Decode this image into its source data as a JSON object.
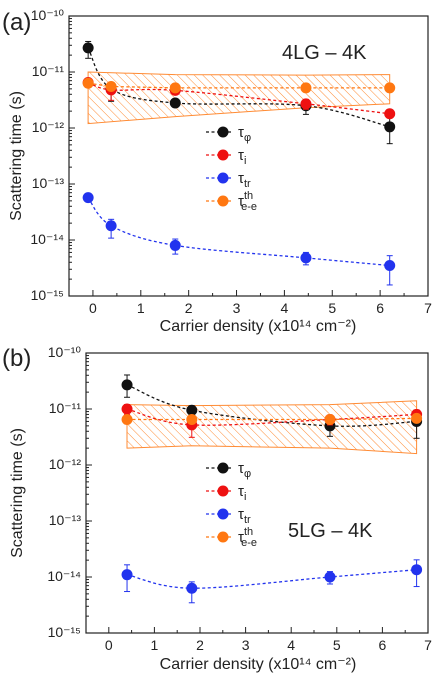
{
  "chart_data": [
    {
      "type": "scatter",
      "panel_label": "(a)",
      "inset_label": "4LG – 4K",
      "xlabel": "Carrier density (x10¹⁴ cm⁻²)",
      "ylabel": "Scattering time (s)",
      "xlim": [
        -0.5,
        7
      ],
      "ylim": [
        1e-15,
        1e-10
      ],
      "y_scale": "log",
      "x_ticks": [
        "0",
        "1",
        "2",
        "3",
        "4",
        "5",
        "6",
        "7"
      ],
      "y_ticks": [
        "10⁻¹⁵",
        "10⁻¹⁴",
        "10⁻¹³",
        "10⁻¹²",
        "10⁻¹¹",
        "10⁻¹⁰"
      ],
      "legend_position": "center",
      "series": [
        {
          "name": "τφ",
          "sym": "τ",
          "sub": "φ",
          "sup": "",
          "color": "#111111",
          "x": [
            -0.1,
            0.38,
            1.72,
            4.45,
            6.2
          ],
          "y": [
            2.7e-11,
            5e-12,
            2.8e-12,
            2.5e-12,
            1.05e-12
          ],
          "err": [
            [
              0.65,
              1.3
            ],
            [
              0.6,
              1.3
            ],
            [
              1,
              1
            ],
            [
              0.7,
              1.2
            ],
            [
              0.5,
              1.5
            ]
          ]
        },
        {
          "name": "τi",
          "sym": "τ",
          "sub": "i",
          "sup": "",
          "color": "#ee1111",
          "x": [
            -0.1,
            0.38,
            1.72,
            4.45,
            6.2
          ],
          "y": [
            6.5e-12,
            4.8e-12,
            4.7e-12,
            2.7e-12,
            1.8e-12
          ],
          "err": [
            [
              0.85,
              1.15
            ],
            [
              0.65,
              1.2
            ],
            [
              0.9,
              1.1
            ],
            [
              0.8,
              1.2
            ],
            [
              0.85,
              1.15
            ]
          ]
        },
        {
          "name": "τtr",
          "sym": "τ",
          "sub": "tr",
          "sup": "",
          "color": "#2233ee",
          "x": [
            -0.1,
            0.38,
            1.72,
            4.45,
            6.2
          ],
          "y": [
            5.7e-14,
            1.8e-14,
            8e-15,
            4.8e-15,
            3.5e-15
          ],
          "err": [
            [
              0.9,
              1.1
            ],
            [
              0.6,
              1.3
            ],
            [
              0.7,
              1.3
            ],
            [
              0.75,
              1.25
            ],
            [
              0.45,
              1.5
            ]
          ]
        },
        {
          "name": "τth e-e",
          "sym": "τ",
          "sub": "e-e",
          "sup": "th",
          "color": "#ff7711",
          "x": [
            -0.1,
            0.38,
            1.72,
            4.45,
            6.2
          ],
          "y": [
            6.3e-12,
            5.5e-12,
            5.2e-12,
            5.2e-12,
            5.2e-12
          ],
          "err": null
        }
      ],
      "band": {
        "color": "#ff7711",
        "x": [
          -0.1,
          1.72,
          4.45,
          6.2
        ],
        "upper": [
          1e-11,
          9e-12,
          8.8e-12,
          9e-12
        ],
        "lower": [
          1.2e-12,
          1.6e-12,
          2.3e-12,
          2.7e-12
        ]
      }
    },
    {
      "type": "scatter",
      "panel_label": "(b)",
      "inset_label": "5LG – 4K",
      "xlabel": "Carrier density (x10¹⁴ cm⁻²)",
      "ylabel": "Scattering time (s)",
      "xlim": [
        -0.5,
        7
      ],
      "ylim": [
        1e-15,
        1e-10
      ],
      "y_scale": "log",
      "x_ticks": [
        "0",
        "1",
        "2",
        "3",
        "4",
        "5",
        "6",
        "7"
      ],
      "y_ticks": [
        "10⁻¹⁵",
        "10⁻¹⁴",
        "10⁻¹³",
        "10⁻¹²",
        "10⁻¹¹",
        "10⁻¹⁰"
      ],
      "legend_position": "center",
      "series": [
        {
          "name": "τφ",
          "sym": "τ",
          "sub": "φ",
          "sup": "",
          "color": "#111111",
          "x": [
            0.4,
            1.82,
            4.85,
            6.75
          ],
          "y": [
            2.7e-11,
            9.5e-12,
            5e-12,
            6e-12
          ],
          "err": [
            [
              0.6,
              1.5
            ],
            [
              0.7,
              1.2
            ],
            [
              0.65,
              1.25
            ],
            [
              0.5,
              1.4
            ]
          ]
        },
        {
          "name": "τi",
          "sym": "τ",
          "sub": "i",
          "sup": "",
          "color": "#ee1111",
          "x": [
            0.4,
            1.82,
            4.85,
            6.75
          ],
          "y": [
            1e-11,
            5.2e-12,
            6.5e-12,
            8e-12
          ],
          "err": [
            [
              0.8,
              1.2
            ],
            [
              0.6,
              1.2
            ],
            [
              0.8,
              1.2
            ],
            [
              0.8,
              1.2
            ]
          ]
        },
        {
          "name": "τtr",
          "sym": "τ",
          "sub": "tr",
          "sup": "",
          "color": "#2233ee",
          "x": [
            0.4,
            1.82,
            4.85,
            6.75
          ],
          "y": [
            1.1e-14,
            6.3e-15,
            1e-14,
            1.35e-14
          ],
          "err": [
            [
              0.5,
              1.5
            ],
            [
              0.55,
              1.3
            ],
            [
              0.75,
              1.25
            ],
            [
              0.5,
              1.5
            ]
          ]
        },
        {
          "name": "τth e-e",
          "sym": "τ",
          "sub": "e-e",
          "sup": "th",
          "color": "#ff7711",
          "x": [
            0.4,
            1.82,
            4.85,
            6.75
          ],
          "y": [
            6.5e-12,
            6.5e-12,
            6.5e-12,
            6.8e-12
          ],
          "err": null
        }
      ],
      "band": {
        "color": "#ff7711",
        "x": [
          0.4,
          1.82,
          4.85,
          6.75
        ],
        "upper": [
          1.2e-11,
          1.15e-11,
          1.2e-11,
          1.4e-11
        ],
        "lower": [
          2e-12,
          2.2e-12,
          2e-12,
          1.6e-12
        ]
      }
    }
  ]
}
